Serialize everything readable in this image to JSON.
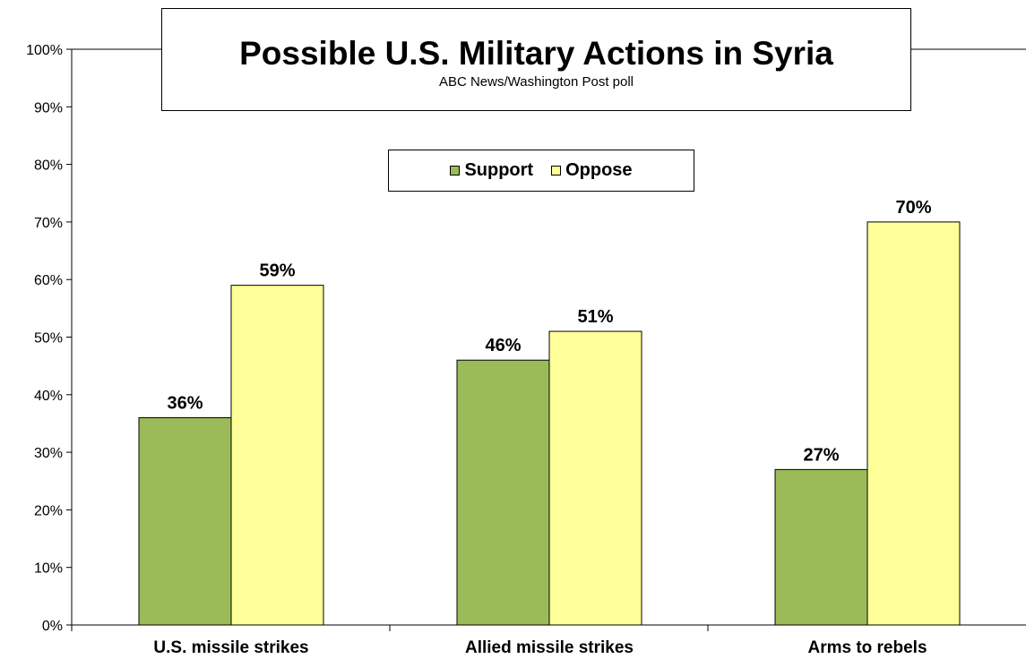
{
  "chart_data": {
    "type": "bar",
    "title": "Possible U.S. Military Actions in Syria",
    "subtitle": "ABC News/Washington  Post poll",
    "categories": [
      "U.S. missile strikes",
      "Allied missile strikes",
      "Arms to rebels"
    ],
    "series": [
      {
        "name": "Support",
        "color": "#9bbb59",
        "values": [
          36,
          46,
          27
        ],
        "labels": [
          "36%",
          "46%",
          "27%"
        ]
      },
      {
        "name": "Oppose",
        "color": "#ffff99",
        "values": [
          59,
          51,
          70
        ],
        "labels": [
          "59%",
          "51%",
          "70%"
        ]
      }
    ],
    "ylim": [
      0,
      100
    ],
    "yticks": [
      "0%",
      "10%",
      "20%",
      "30%",
      "40%",
      "50%",
      "60%",
      "70%",
      "80%",
      "90%",
      "100%"
    ],
    "legend_position": "top-center",
    "grid": false
  }
}
